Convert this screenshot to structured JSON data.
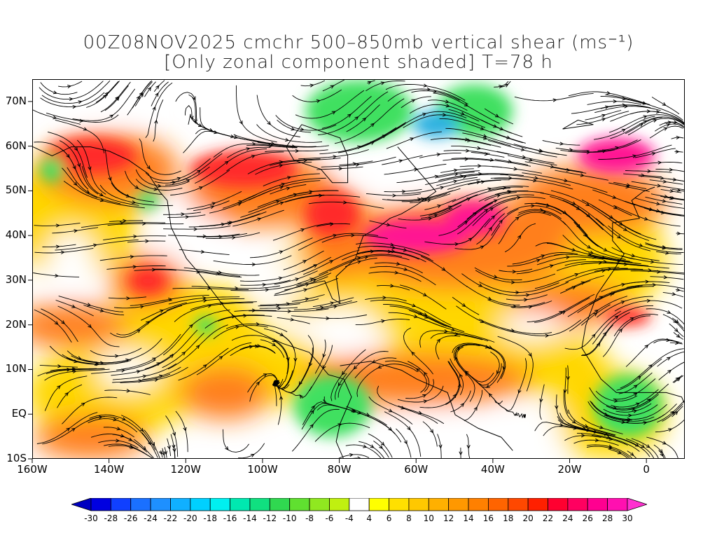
{
  "title": {
    "line1": "00Z08NOV2025 cmchr 500–850mb vertical shear (ms⁻¹)",
    "line2": "[Only zonal component shaded] T=78 h"
  },
  "map": {
    "lat_labels": [
      {
        "text": "70N",
        "lat": 70
      },
      {
        "text": "60N",
        "lat": 60
      },
      {
        "text": "50N",
        "lat": 50
      },
      {
        "text": "40N",
        "lat": 40
      },
      {
        "text": "30N",
        "lat": 30
      },
      {
        "text": "20N",
        "lat": 20
      },
      {
        "text": "10N",
        "lat": 10
      },
      {
        "text": "EQ",
        "lat": 0
      },
      {
        "text": "10S",
        "lat": -10
      }
    ],
    "lon_labels": [
      {
        "text": "160W",
        "lon": -160
      },
      {
        "text": "140W",
        "lon": -140
      },
      {
        "text": "120W",
        "lon": -120
      },
      {
        "text": "100W",
        "lon": -100
      },
      {
        "text": "80W",
        "lon": -80
      },
      {
        "text": "60W",
        "lon": -60
      },
      {
        "text": "40W",
        "lon": -40
      },
      {
        "text": "20W",
        "lon": -20
      },
      {
        "text": "0",
        "lon": 0
      }
    ],
    "lon_range": [
      -160,
      10
    ],
    "lat_range": [
      -10,
      75
    ],
    "shading_colors": {
      "strong_westerly": "#ff1493",
      "westerly_red": "#ff2a2a",
      "westerly_orange": "#ff7f1e",
      "westerly_yellow": "#ffd700",
      "easterly_green": "#40e060",
      "easterly_cyan": "#2ab0e0",
      "neutral": "#ffffff"
    }
  },
  "colorbar": {
    "labels": [
      "-30",
      "-28",
      "-26",
      "-24",
      "-22",
      "-20",
      "-18",
      "-16",
      "-14",
      "-12",
      "-10",
      "-8",
      "-6",
      "-4",
      "4",
      "6",
      "8",
      "10",
      "12",
      "14",
      "16",
      "18",
      "20",
      "22",
      "24",
      "26",
      "28",
      "30"
    ],
    "colors": [
      "#0000e0",
      "#1040ff",
      "#1a70ff",
      "#1e90ff",
      "#10b0ff",
      "#00d0ff",
      "#00f0f0",
      "#00e8b0",
      "#10e080",
      "#30d850",
      "#60e030",
      "#90e820",
      "#c0f010",
      "#ffffff",
      "#ffff00",
      "#ffe000",
      "#ffc800",
      "#ffb000",
      "#ff9800",
      "#ff8000",
      "#ff6400",
      "#ff4800",
      "#ff2000",
      "#ff0030",
      "#ff0060",
      "#ff0090",
      "#ff10b0"
    ],
    "low_arrow_color": "#0000c0",
    "high_arrow_color": "#ff30d0"
  }
}
